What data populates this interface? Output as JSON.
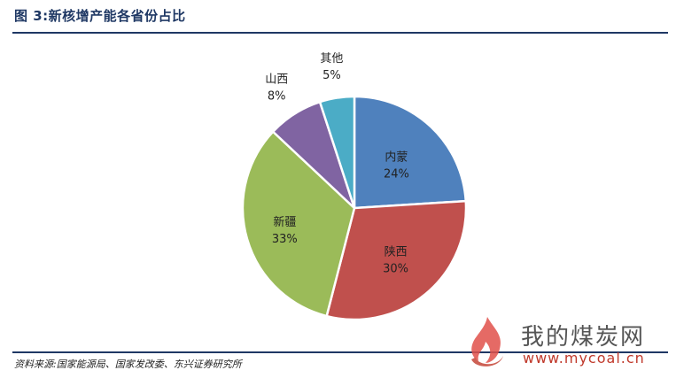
{
  "figure": {
    "title": "图 3:新核增产能各省份占比",
    "source": "资料来源:国家能源局、国家发改委、东兴证券研究所"
  },
  "watermark": {
    "name": "我的煤炭网",
    "url": "www.mycoal.cn"
  },
  "colors": {
    "内蒙": "#4f81bd",
    "陕西": "#c0504d",
    "新疆": "#9bbb59",
    "山西": "#8064a2",
    "其他": "#4bacc6",
    "rule": "#1f3864"
  },
  "chart_data": {
    "type": "pie",
    "start": "12 o'clock",
    "direction": "clockwise",
    "slices": [
      {
        "label": "内蒙",
        "value": 24,
        "display": "24%"
      },
      {
        "label": "陕西",
        "value": 30,
        "display": "30%"
      },
      {
        "label": "新疆",
        "value": 33,
        "display": "33%"
      },
      {
        "label": "山西",
        "value": 8,
        "display": "8%"
      },
      {
        "label": "其他",
        "value": 5,
        "display": "5%"
      }
    ]
  }
}
